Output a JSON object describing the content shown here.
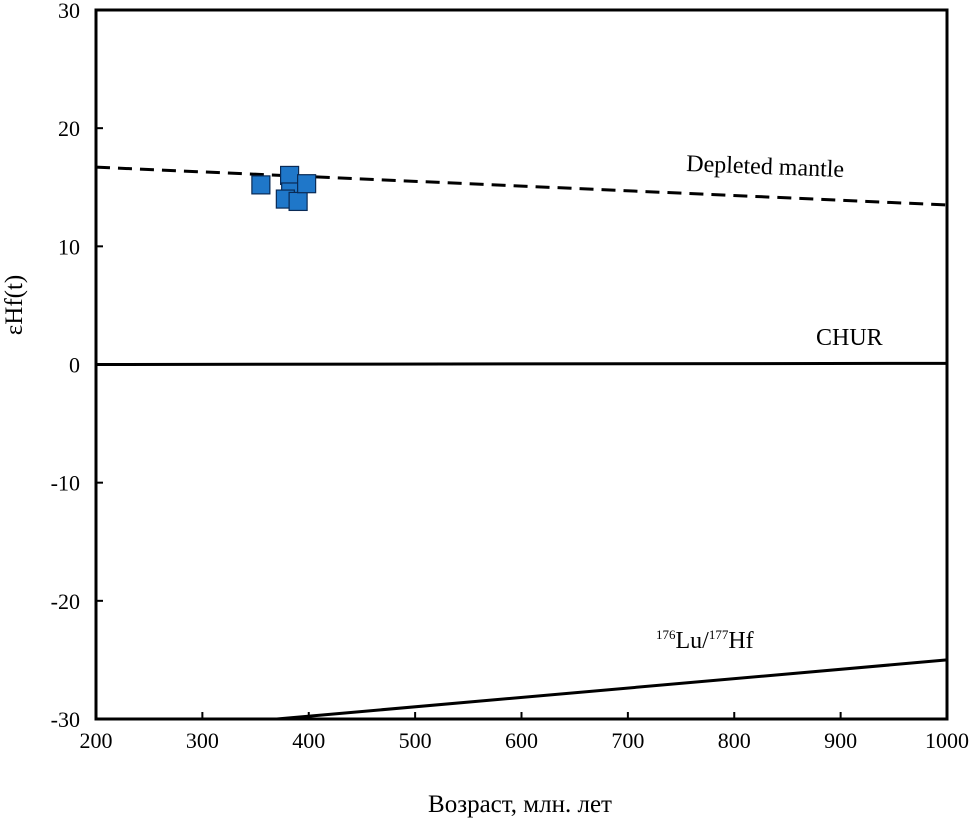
{
  "chart_data": {
    "type": "scatter",
    "title": "",
    "xlabel": "Возраст, млн. лет",
    "ylabel": "εHf(t)",
    "xlim": [
      200,
      1000
    ],
    "ylim": [
      -30,
      30
    ],
    "x_ticks": [
      "200",
      "300",
      "400",
      "500",
      "600",
      "700",
      "800",
      "900",
      "1000"
    ],
    "y_ticks": [
      "30",
      "20",
      "10",
      "0",
      "-10",
      "-20",
      "-30"
    ],
    "grid": false,
    "legend": "none",
    "marker": "square",
    "marker_color": "#1f77c9",
    "series": [
      {
        "points": [
          {
            "x": 355,
            "y": 15.2
          },
          {
            "x": 382,
            "y": 16.0
          },
          {
            "x": 383,
            "y": 14.6
          },
          {
            "x": 378,
            "y": 14.0
          },
          {
            "x": 390,
            "y": 13.8
          },
          {
            "x": 398,
            "y": 15.3
          }
        ]
      }
    ],
    "reference_lines": [
      {
        "label": "Depleted mantle",
        "style": "dashed",
        "x": [
          200,
          1000
        ],
        "y": [
          16.7,
          13.5
        ]
      },
      {
        "label": "CHUR",
        "style": "solid",
        "x": [
          200,
          1000
        ],
        "y": [
          0,
          0.1
        ]
      },
      {
        "label_sup1": "176",
        "label_main1": "Lu/",
        "label_sup2": "177",
        "label_main2": "Hf",
        "style": "solid",
        "x": [
          370,
          1000
        ],
        "y": [
          -30,
          -25
        ]
      }
    ]
  }
}
